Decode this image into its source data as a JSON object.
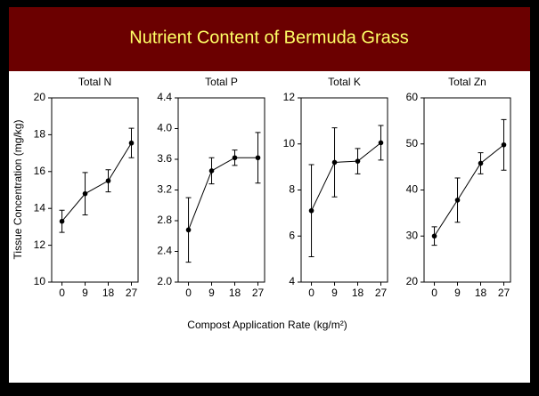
{
  "title": "Nutrient Content of Bermuda Grass",
  "x_label": "Compost Application Rate (kg/m²)",
  "y_label": "Tissue Concentration (mg/kg)",
  "chart_data": [
    {
      "type": "line",
      "title": "Total N",
      "x": [
        0,
        9,
        18,
        27
      ],
      "values": [
        13.3,
        14.8,
        15.5,
        17.55
      ],
      "errors": [
        0.6,
        1.15,
        0.6,
        0.8
      ],
      "xlim": [
        -4,
        29.6
      ],
      "xticks": [
        0,
        9,
        18,
        27
      ],
      "ylim": [
        10,
        20
      ],
      "yticks": [
        10,
        12,
        14,
        16,
        18,
        20
      ],
      "color": "#000000"
    },
    {
      "type": "line",
      "title": "Total P",
      "x": [
        0,
        9,
        18,
        27
      ],
      "values": [
        2.68,
        3.45,
        3.62,
        3.62
      ],
      "errors": [
        0.42,
        0.17,
        0.1,
        0.33
      ],
      "xlim": [
        -4,
        29.6
      ],
      "xticks": [
        0,
        9,
        18,
        27
      ],
      "ylim": [
        2.0,
        4.4
      ],
      "yticks": [
        {
          "value": 2.0,
          "label": "2.0"
        },
        2.4,
        2.8,
        3.2,
        3.6,
        {
          "value": 4.0,
          "label": "4.0"
        },
        4.4
      ],
      "color": "#000000"
    },
    {
      "type": "line",
      "title": "Total K",
      "x": [
        0,
        9,
        18,
        27
      ],
      "values": [
        7.1,
        9.2,
        9.25,
        10.05
      ],
      "errors": [
        2.0,
        1.5,
        0.55,
        0.75
      ],
      "xlim": [
        -4,
        29.6
      ],
      "xticks": [
        0,
        9,
        18,
        27
      ],
      "ylim": [
        4,
        12
      ],
      "yticks": [
        4,
        6,
        8,
        10,
        12
      ],
      "color": "#000000"
    },
    {
      "type": "line",
      "title": "Total Zn",
      "x": [
        0,
        9,
        18,
        27
      ],
      "values": [
        30,
        37.8,
        45.8,
        49.8
      ],
      "errors": [
        2,
        4.8,
        2.3,
        5.5
      ],
      "xlim": [
        -4,
        29.6
      ],
      "xticks": [
        0,
        9,
        18,
        27
      ],
      "ylim": [
        20,
        60
      ],
      "yticks": [
        20,
        30,
        40,
        50,
        60
      ],
      "color": "#000000"
    }
  ]
}
